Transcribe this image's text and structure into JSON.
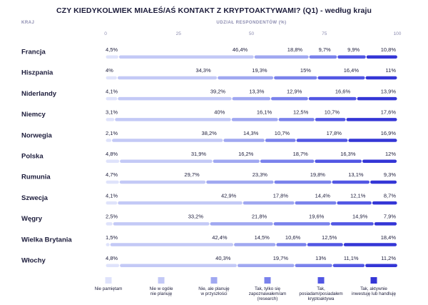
{
  "chart_data": {
    "type": "bar",
    "stacked": true,
    "orientation": "horizontal",
    "title": "CZY KIEDYKOLWIEK MIAŁEŚ/AŚ KONTAKT Z KRYPTOAKTYWAMI? (Q1) - według kraju",
    "category_header": "KRAJ",
    "xlabel": "UDZIAŁ RESPONDENTÓW (%)",
    "xlim": [
      0,
      100
    ],
    "xticks": [
      0,
      25,
      50,
      75,
      100
    ],
    "value_suffix": "%",
    "legend_position": "bottom",
    "categories": [
      "Francja",
      "Hiszpania",
      "Niderlandy",
      "Niemcy",
      "Norwegia",
      "Polska",
      "Rumunia",
      "Szwecja",
      "Węgry",
      "Wielka Brytania",
      "Włochy"
    ],
    "series": [
      {
        "name": "Nie pamiętam",
        "color": "#dfe3fb",
        "values": [
          4.5,
          4,
          4.1,
          3.1,
          2.1,
          4.8,
          4.7,
          4.1,
          2.5,
          1.5,
          4.8
        ]
      },
      {
        "name": "Nie w ogóle nie planuję",
        "color": "#c3c9f6",
        "values": [
          46.4,
          34.3,
          39.2,
          40,
          38.2,
          31.9,
          29.7,
          42.9,
          33.2,
          42.4,
          40.3
        ]
      },
      {
        "name": "Nie, ale planuję w przyszłości",
        "color": "#a0a8f1",
        "values": [
          18.8,
          19.3,
          13.3,
          16.1,
          14.3,
          16.2,
          23.3,
          17.8,
          21.8,
          14.5,
          19.7
        ]
      },
      {
        "name": "Tak, tylko się zapoznawałem/am (research)",
        "color": "#7a82ec",
        "values": [
          9.7,
          15,
          12.9,
          12.5,
          10.7,
          18.7,
          19.8,
          14.4,
          19.6,
          10.6,
          13
        ]
      },
      {
        "name": "Tak, posiadam/posiadałem kryptoaktywa",
        "color": "#5257e4",
        "values": [
          9.9,
          16.4,
          16.6,
          10.7,
          17.8,
          16.3,
          13.1,
          12.1,
          14.9,
          12.5,
          11.1
        ]
      },
      {
        "name": "Tak, aktywnie inwestuję lub handluję",
        "color": "#3436d6",
        "values": [
          10.8,
          11,
          13.9,
          17.6,
          16.9,
          12,
          9.3,
          8.7,
          7.9,
          18.4,
          11.2
        ]
      }
    ]
  }
}
